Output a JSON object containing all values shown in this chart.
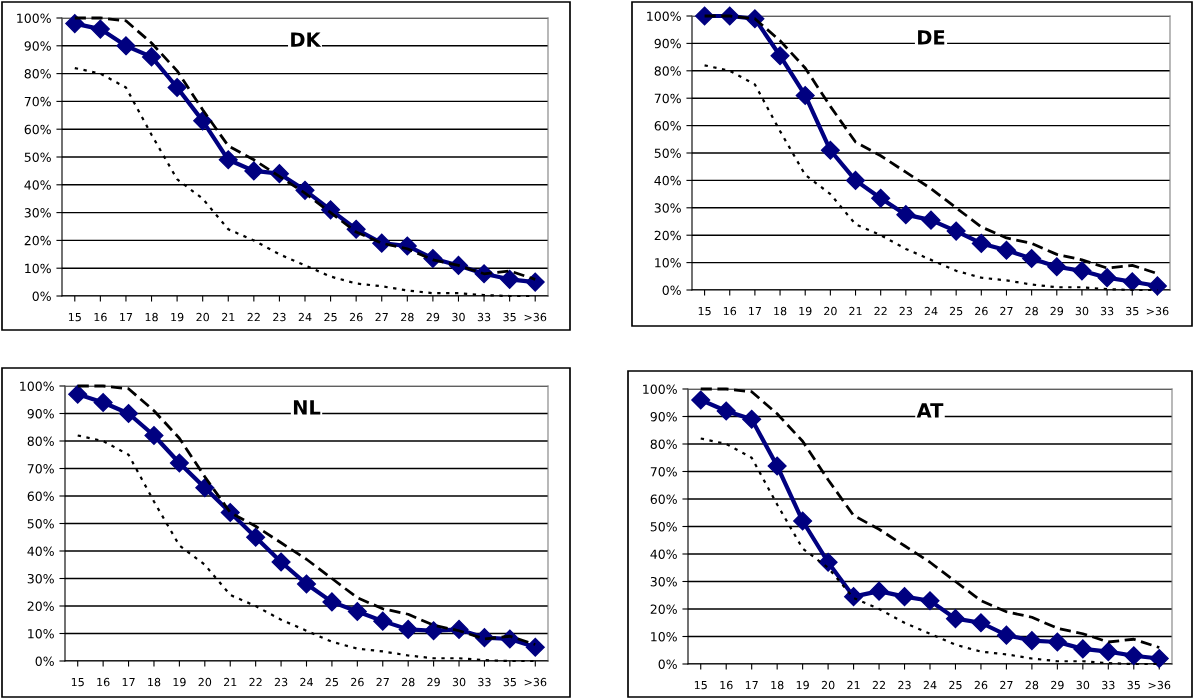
{
  "chart_data": [
    {
      "type": "line",
      "title": "DK",
      "categories": [
        "15",
        "16",
        "17",
        "18",
        "19",
        "20",
        "21",
        "22",
        "23",
        "24",
        "25",
        "26",
        "27",
        "28",
        "29",
        "30",
        "33",
        "35",
        ">36"
      ],
      "ylim": [
        0,
        100
      ],
      "yticks": [
        {
          "value": 0,
          "label": "0%"
        },
        {
          "value": 10,
          "label": "10%"
        },
        {
          "value": 20,
          "label": "20%"
        },
        {
          "value": 30,
          "label": "30%"
        },
        {
          "value": 40,
          "label": "40%"
        },
        {
          "value": 50,
          "label": "50%"
        },
        {
          "value": 60,
          "label": "60%"
        },
        {
          "value": 70,
          "label": "70%"
        },
        {
          "value": 80,
          "label": "80%"
        },
        {
          "value": 90,
          "label": "90%"
        },
        {
          "value": 100,
          "label": "100%"
        }
      ],
      "grid": "y",
      "series": [
        {
          "color": "#000000",
          "line_style": "dashed",
          "marker": "none",
          "values": [
            100,
            100,
            99,
            91,
            81,
            67,
            54,
            49,
            43,
            37,
            30,
            23,
            19,
            17,
            13,
            11,
            8,
            9,
            6
          ]
        },
        {
          "color": "#000000",
          "line_style": "dotted",
          "marker": "none",
          "values": [
            82,
            80,
            75,
            58,
            42,
            35,
            24,
            20,
            15,
            11,
            7,
            4.5,
            3.5,
            2,
            1,
            1,
            0.3,
            0,
            0
          ]
        },
        {
          "color": "#000080",
          "line_style": "solid",
          "marker": "diamond",
          "values": [
            98,
            96,
            90,
            86,
            75,
            63,
            49,
            45,
            44,
            38,
            31,
            24,
            19,
            18,
            13.5,
            11,
            8,
            6,
            5
          ]
        }
      ]
    },
    {
      "type": "line",
      "title": "DE",
      "categories": [
        "15",
        "16",
        "17",
        "18",
        "19",
        "20",
        "21",
        "22",
        "23",
        "24",
        "25",
        "26",
        "27",
        "28",
        "29",
        "30",
        "33",
        "35",
        ">36"
      ],
      "ylim": [
        0,
        100
      ],
      "yticks": [
        {
          "value": 0,
          "label": "0%"
        },
        {
          "value": 10,
          "label": "10%"
        },
        {
          "value": 20,
          "label": "20%"
        },
        {
          "value": 30,
          "label": "30%"
        },
        {
          "value": 40,
          "label": "40%"
        },
        {
          "value": 50,
          "label": "50%"
        },
        {
          "value": 60,
          "label": "60%"
        },
        {
          "value": 70,
          "label": "70%"
        },
        {
          "value": 80,
          "label": "80%"
        },
        {
          "value": 90,
          "label": "90%"
        },
        {
          "value": 100,
          "label": "100%"
        }
      ],
      "grid": "y",
      "series": [
        {
          "color": "#000000",
          "line_style": "dashed",
          "marker": "none",
          "values": [
            100,
            100,
            99,
            91,
            81,
            67,
            54,
            49,
            43,
            37,
            30,
            23,
            19,
            17,
            13,
            11,
            8,
            9,
            6
          ]
        },
        {
          "color": "#000000",
          "line_style": "dotted",
          "marker": "none",
          "values": [
            82,
            80,
            75,
            58,
            42,
            35,
            24,
            20,
            15,
            11,
            7,
            4.5,
            3.5,
            2,
            1,
            1,
            0.3,
            0,
            0
          ]
        },
        {
          "color": "#000080",
          "line_style": "solid",
          "marker": "diamond",
          "values": [
            100,
            100,
            99,
            85.5,
            71,
            51,
            40,
            33.5,
            27.5,
            25.5,
            21.5,
            17,
            14.5,
            11.5,
            8.5,
            7,
            4.5,
            3,
            1.5
          ]
        }
      ]
    },
    {
      "type": "line",
      "title": "NL",
      "categories": [
        "15",
        "16",
        "17",
        "18",
        "19",
        "20",
        "21",
        "22",
        "23",
        "24",
        "25",
        "26",
        "27",
        "28",
        "29",
        "30",
        "33",
        "35",
        ">36"
      ],
      "ylim": [
        0,
        100
      ],
      "yticks": [
        {
          "value": 0,
          "label": "0%"
        },
        {
          "value": 10,
          "label": "10%"
        },
        {
          "value": 20,
          "label": "20%"
        },
        {
          "value": 30,
          "label": "30%"
        },
        {
          "value": 40,
          "label": "40%"
        },
        {
          "value": 50,
          "label": "50%"
        },
        {
          "value": 60,
          "label": "60%"
        },
        {
          "value": 70,
          "label": "70%"
        },
        {
          "value": 80,
          "label": "80%"
        },
        {
          "value": 90,
          "label": "90%"
        },
        {
          "value": 100,
          "label": "100%"
        }
      ],
      "grid": "y",
      "series": [
        {
          "color": "#000000",
          "line_style": "dashed",
          "marker": "none",
          "values": [
            100,
            100,
            99,
            91,
            81,
            67,
            54,
            49,
            43,
            37,
            30,
            23,
            19,
            17,
            13,
            11,
            8,
            9,
            6
          ]
        },
        {
          "color": "#000000",
          "line_style": "dotted",
          "marker": "none",
          "values": [
            82,
            80,
            75,
            58,
            42,
            35,
            24,
            20,
            15,
            11,
            7,
            4.5,
            3.5,
            2,
            1,
            1,
            0.3,
            0,
            0
          ]
        },
        {
          "color": "#000080",
          "line_style": "solid",
          "marker": "diamond",
          "values": [
            97,
            94,
            90,
            82,
            72,
            63,
            54,
            45,
            36,
            28,
            21.5,
            18,
            14.5,
            11.5,
            11,
            11.5,
            8.5,
            8,
            5
          ]
        }
      ]
    },
    {
      "type": "line",
      "title": "AT",
      "categories": [
        "15",
        "16",
        "17",
        "18",
        "19",
        "20",
        "21",
        "22",
        "23",
        "24",
        "25",
        "26",
        "27",
        "28",
        "29",
        "30",
        "33",
        "35",
        ">36"
      ],
      "ylim": [
        0,
        100
      ],
      "yticks": [
        {
          "value": 0,
          "label": "0%"
        },
        {
          "value": 10,
          "label": "10%"
        },
        {
          "value": 20,
          "label": "20%"
        },
        {
          "value": 30,
          "label": "30%"
        },
        {
          "value": 40,
          "label": "40%"
        },
        {
          "value": 50,
          "label": "50%"
        },
        {
          "value": 60,
          "label": "60%"
        },
        {
          "value": 70,
          "label": "70%"
        },
        {
          "value": 80,
          "label": "80%"
        },
        {
          "value": 90,
          "label": "90%"
        },
        {
          "value": 100,
          "label": "100%"
        }
      ],
      "grid": "y",
      "series": [
        {
          "color": "#000000",
          "line_style": "dashed",
          "marker": "none",
          "values": [
            100,
            100,
            99,
            91,
            81,
            67,
            54,
            49,
            43,
            37,
            30,
            23,
            19,
            17,
            13,
            11,
            8,
            9,
            6
          ]
        },
        {
          "color": "#000000",
          "line_style": "dotted",
          "marker": "none",
          "values": [
            82,
            80,
            75,
            58,
            42,
            35,
            24,
            20,
            15,
            11,
            7,
            4.5,
            3.5,
            2,
            1,
            1,
            0.3,
            0,
            0
          ]
        },
        {
          "color": "#000080",
          "line_style": "solid",
          "marker": "diamond",
          "values": [
            96,
            92,
            89,
            72,
            52,
            37,
            24.5,
            26.5,
            24.5,
            23,
            16.5,
            15,
            10.5,
            8.5,
            8,
            5.5,
            4.5,
            3,
            2
          ]
        }
      ]
    }
  ]
}
